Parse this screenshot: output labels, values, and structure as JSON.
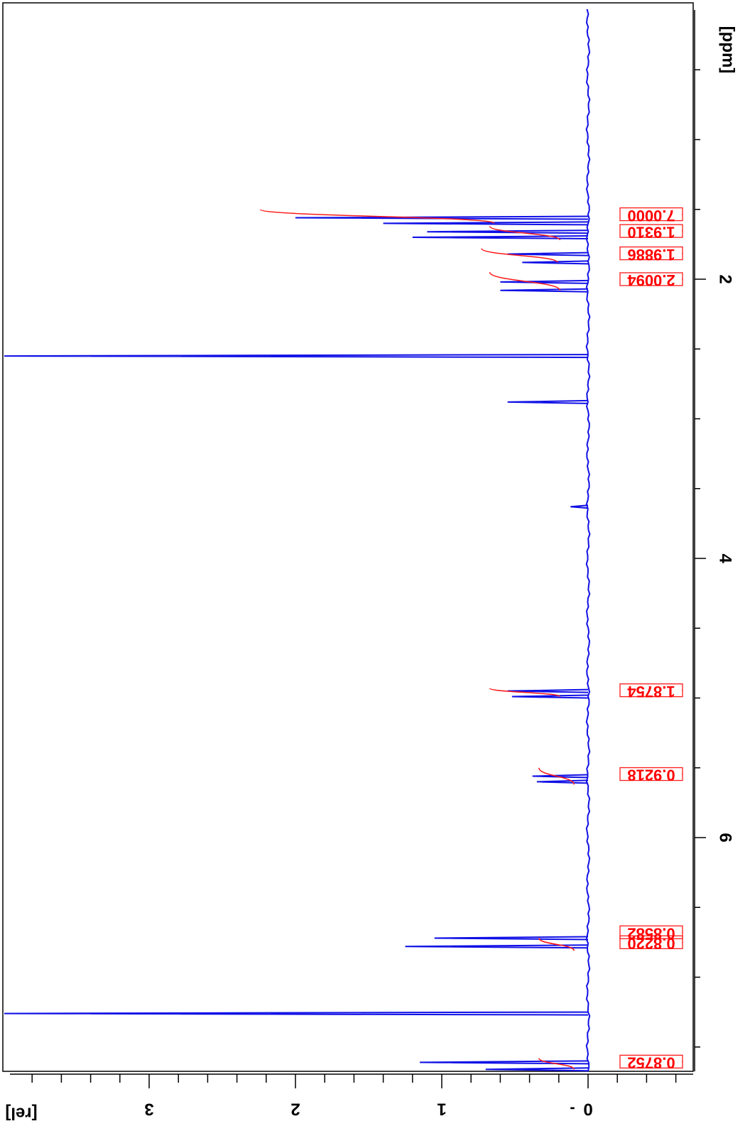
{
  "chart_data": {
    "type": "line",
    "orientation": "rotated-90",
    "x_axis": {
      "label": "[ppm]",
      "ticks": [
        "2",
        "4",
        "6"
      ],
      "reversed": false
    },
    "y_axis": {
      "label": "[rel]",
      "ticks": [
        "0",
        "1",
        "2",
        "3"
      ]
    },
    "colors": {
      "spectrum": "#1010e6",
      "integral": "#ff1a1a",
      "axis": "#000000"
    },
    "peaks": [
      {
        "ppm": 2.55,
        "height": 5.0
      },
      {
        "ppm": 2.88,
        "height": 0.55
      },
      {
        "ppm": 2.08,
        "height": 0.6
      },
      {
        "ppm": 2.02,
        "height": 0.6
      },
      {
        "ppm": 1.88,
        "height": 0.45
      },
      {
        "ppm": 1.82,
        "height": 0.55
      },
      {
        "ppm": 1.7,
        "height": 1.2
      },
      {
        "ppm": 1.66,
        "height": 1.1
      },
      {
        "ppm": 1.6,
        "height": 1.4
      },
      {
        "ppm": 1.56,
        "height": 2.0
      },
      {
        "ppm": 3.63,
        "height": 0.12
      },
      {
        "ppm": 4.95,
        "height": 0.55
      },
      {
        "ppm": 4.99,
        "height": 0.52
      },
      {
        "ppm": 5.56,
        "height": 0.38
      },
      {
        "ppm": 5.6,
        "height": 0.35
      },
      {
        "ppm": 6.72,
        "height": 1.05
      },
      {
        "ppm": 6.78,
        "height": 1.25
      },
      {
        "ppm": 7.26,
        "height": 4.5
      },
      {
        "ppm": 7.61,
        "height": 1.15
      },
      {
        "ppm": 7.66,
        "height": 0.7
      }
    ],
    "integrals": [
      {
        "label": "2.0094",
        "ppm_start": 2.08,
        "ppm_end": 1.95,
        "rise": 0.12
      },
      {
        "label": "1.9886",
        "ppm_start": 1.88,
        "ppm_end": 1.78,
        "rise": 0.13
      },
      {
        "label": "1.9310",
        "ppm_start": 1.72,
        "ppm_end": 1.62,
        "rise": 0.12
      },
      {
        "label": "7.0000",
        "ppm_start": 1.6,
        "ppm_end": 1.5,
        "rise": 0.4
      },
      {
        "label": "1.8754",
        "ppm_start": 4.99,
        "ppm_end": 4.93,
        "rise": 0.12
      },
      {
        "label": "0.9218",
        "ppm_start": 5.62,
        "ppm_end": 5.5,
        "rise": 0.06
      },
      {
        "label": "0.8220",
        "ppm_start": 6.81,
        "ppm_end": 6.72,
        "rise": 0.06
      },
      {
        "label": "0.8582",
        "ppm_start": 6.81,
        "ppm_end": 6.72,
        "rise": 0.06
      },
      {
        "label": "0.8752",
        "ppm_start": 7.66,
        "ppm_end": 7.58,
        "rise": 0.06
      }
    ]
  }
}
